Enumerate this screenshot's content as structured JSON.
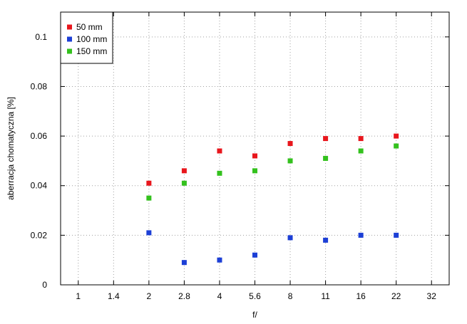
{
  "chart_data": {
    "type": "scatter",
    "title": "",
    "xlabel": "f/",
    "ylabel": "aberracja chomatyczna [%]",
    "categories": [
      "1",
      "1.4",
      "2",
      "2.8",
      "4",
      "5.6",
      "8",
      "11",
      "16",
      "22",
      "32"
    ],
    "ylim": [
      0,
      0.11
    ],
    "yticks": [
      "0",
      "0.02",
      "0.04",
      "0.06",
      "0.08",
      "0.1"
    ],
    "grid": true,
    "legend_position": "top-left",
    "series": [
      {
        "name": "50 mm",
        "color": "#e8161c",
        "points": [
          {
            "x": "2",
            "y": 0.041
          },
          {
            "x": "2.8",
            "y": 0.046
          },
          {
            "x": "4",
            "y": 0.054
          },
          {
            "x": "5.6",
            "y": 0.052
          },
          {
            "x": "8",
            "y": 0.057
          },
          {
            "x": "11",
            "y": 0.059
          },
          {
            "x": "16",
            "y": 0.059
          },
          {
            "x": "22",
            "y": 0.06
          }
        ]
      },
      {
        "name": "100 mm",
        "color": "#1c3fd6",
        "points": [
          {
            "x": "2",
            "y": 0.021
          },
          {
            "x": "2.8",
            "y": 0.009
          },
          {
            "x": "4",
            "y": 0.01
          },
          {
            "x": "5.6",
            "y": 0.012
          },
          {
            "x": "8",
            "y": 0.019
          },
          {
            "x": "11",
            "y": 0.018
          },
          {
            "x": "16",
            "y": 0.02
          },
          {
            "x": "22",
            "y": 0.02
          }
        ]
      },
      {
        "name": "150 mm",
        "color": "#33c11d",
        "points": [
          {
            "x": "2",
            "y": 0.035
          },
          {
            "x": "2.8",
            "y": 0.041
          },
          {
            "x": "4",
            "y": 0.045
          },
          {
            "x": "5.6",
            "y": 0.046
          },
          {
            "x": "8",
            "y": 0.05
          },
          {
            "x": "11",
            "y": 0.051
          },
          {
            "x": "16",
            "y": 0.054
          },
          {
            "x": "22",
            "y": 0.056
          }
        ]
      }
    ]
  }
}
